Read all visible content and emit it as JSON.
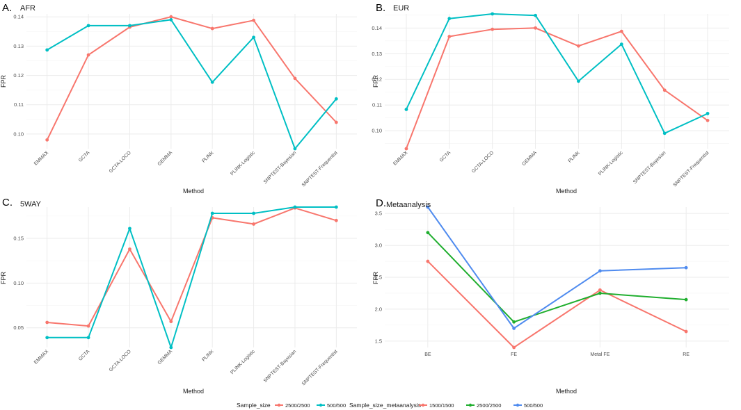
{
  "colors": {
    "red": "#F8766D",
    "teal": "#00BFC4",
    "green": "#1FAE2E",
    "blue": "#4F8BEF"
  },
  "chart_data": [
    {
      "id": "A",
      "letter": "A.",
      "title": "AFR",
      "type": "line",
      "xlabel": "Method",
      "ylabel": "FPR",
      "ylim": [
        0.095,
        0.141
      ],
      "yticks": [
        0.1,
        0.11,
        0.12,
        0.13,
        0.14
      ],
      "ytick_labels": [
        "0.10",
        "0.11",
        "0.12",
        "0.13",
        "0.14"
      ],
      "categories": [
        "EMMAX",
        "GCTA",
        "GCTA-LOCO",
        "GEMMA",
        "PLINK",
        "PLINK-Logistic",
        "SNPTEST-Bayesian",
        "SNPTEST-Frequentist"
      ],
      "series": [
        {
          "name": "2500/2500",
          "color": "red",
          "values": [
            0.098,
            0.127,
            0.1365,
            0.14,
            0.136,
            0.1388,
            0.119,
            0.104
          ]
        },
        {
          "name": "500/500",
          "color": "teal",
          "values": [
            0.1287,
            0.137,
            0.137,
            0.139,
            0.1177,
            0.133,
            0.095,
            0.112
          ]
        }
      ]
    },
    {
      "id": "B",
      "letter": "B.",
      "title": "EUR",
      "type": "line",
      "xlabel": "Method",
      "ylabel": "FPR",
      "ylim": [
        0.093,
        0.1455
      ],
      "yticks": [
        0.1,
        0.11,
        0.12,
        0.13,
        0.14
      ],
      "ytick_labels": [
        "0.10",
        "0.11",
        "0.12",
        "0.13",
        "0.14"
      ],
      "categories": [
        "EMMAX",
        "GCTA",
        "GCTA-LOCO",
        "GEMMA",
        "PLINK",
        "PLINK-Logistic",
        "SNPTEST-Bayesian",
        "SNPTEST-Frequentist"
      ],
      "series": [
        {
          "name": "2500/2500",
          "color": "red",
          "values": [
            0.093,
            0.1367,
            0.1395,
            0.14,
            0.133,
            0.1387,
            0.1158,
            0.104
          ]
        },
        {
          "name": "500/500",
          "color": "teal",
          "values": [
            0.1083,
            0.1437,
            0.1455,
            0.1449,
            0.1193,
            0.1337,
            0.099,
            0.1067
          ]
        }
      ]
    },
    {
      "id": "C",
      "letter": "C.",
      "title": "5WAY",
      "type": "line",
      "xlabel": "Method",
      "ylabel": "FPR",
      "ylim": [
        0.028,
        0.185
      ],
      "yticks": [
        0.05,
        0.1,
        0.15
      ],
      "ytick_labels": [
        "0.05",
        "0.10",
        "0.15"
      ],
      "categories": [
        "EMMAX",
        "GCTA",
        "GCTA-LOCO",
        "GEMMA",
        "PLINK",
        "PLINK-Logistic",
        "SNPTEST-Bayesian",
        "SNPTEST-Frequentist"
      ],
      "series": [
        {
          "name": "2500/2500",
          "color": "red",
          "values": [
            0.056,
            0.052,
            0.138,
            0.057,
            0.173,
            0.166,
            0.184,
            0.17
          ]
        },
        {
          "name": "500/500",
          "color": "teal",
          "values": [
            0.039,
            0.039,
            0.161,
            0.028,
            0.178,
            0.178,
            0.185,
            0.185
          ]
        }
      ]
    },
    {
      "id": "D",
      "letter": "D.",
      "title": "Metaanalysis",
      "type": "line",
      "xlabel": "Method",
      "ylabel": "FPR",
      "ylim": [
        1.4,
        3.6
      ],
      "yticks": [
        1.5,
        2.0,
        2.5,
        3.0,
        3.5
      ],
      "ytick_labels": [
        "1.5",
        "2.0",
        "2.5",
        "3.0",
        "3.5"
      ],
      "categories": [
        "BE",
        "FE",
        "Metal FE",
        "RE"
      ],
      "series": [
        {
          "name": "1500/1500",
          "color": "red",
          "values": [
            2.75,
            1.4,
            2.3,
            1.65
          ]
        },
        {
          "name": "2500/2500",
          "color": "green",
          "values": [
            3.2,
            1.8,
            2.25,
            2.15
          ]
        },
        {
          "name": "500/500",
          "color": "blue",
          "values": [
            3.6,
            1.7,
            2.6,
            2.65
          ]
        }
      ]
    }
  ],
  "legends": [
    {
      "title": "Sample_size",
      "items": [
        {
          "label": "2500/2500",
          "color": "red"
        },
        {
          "label": "500/500",
          "color": "teal"
        }
      ]
    },
    {
      "title": "Sample_size_metaanalysis",
      "items": [
        {
          "label": "1500/1500",
          "color": "red"
        },
        {
          "label": "2500/2500",
          "color": "green"
        },
        {
          "label": "500/500",
          "color": "blue"
        }
      ]
    }
  ]
}
